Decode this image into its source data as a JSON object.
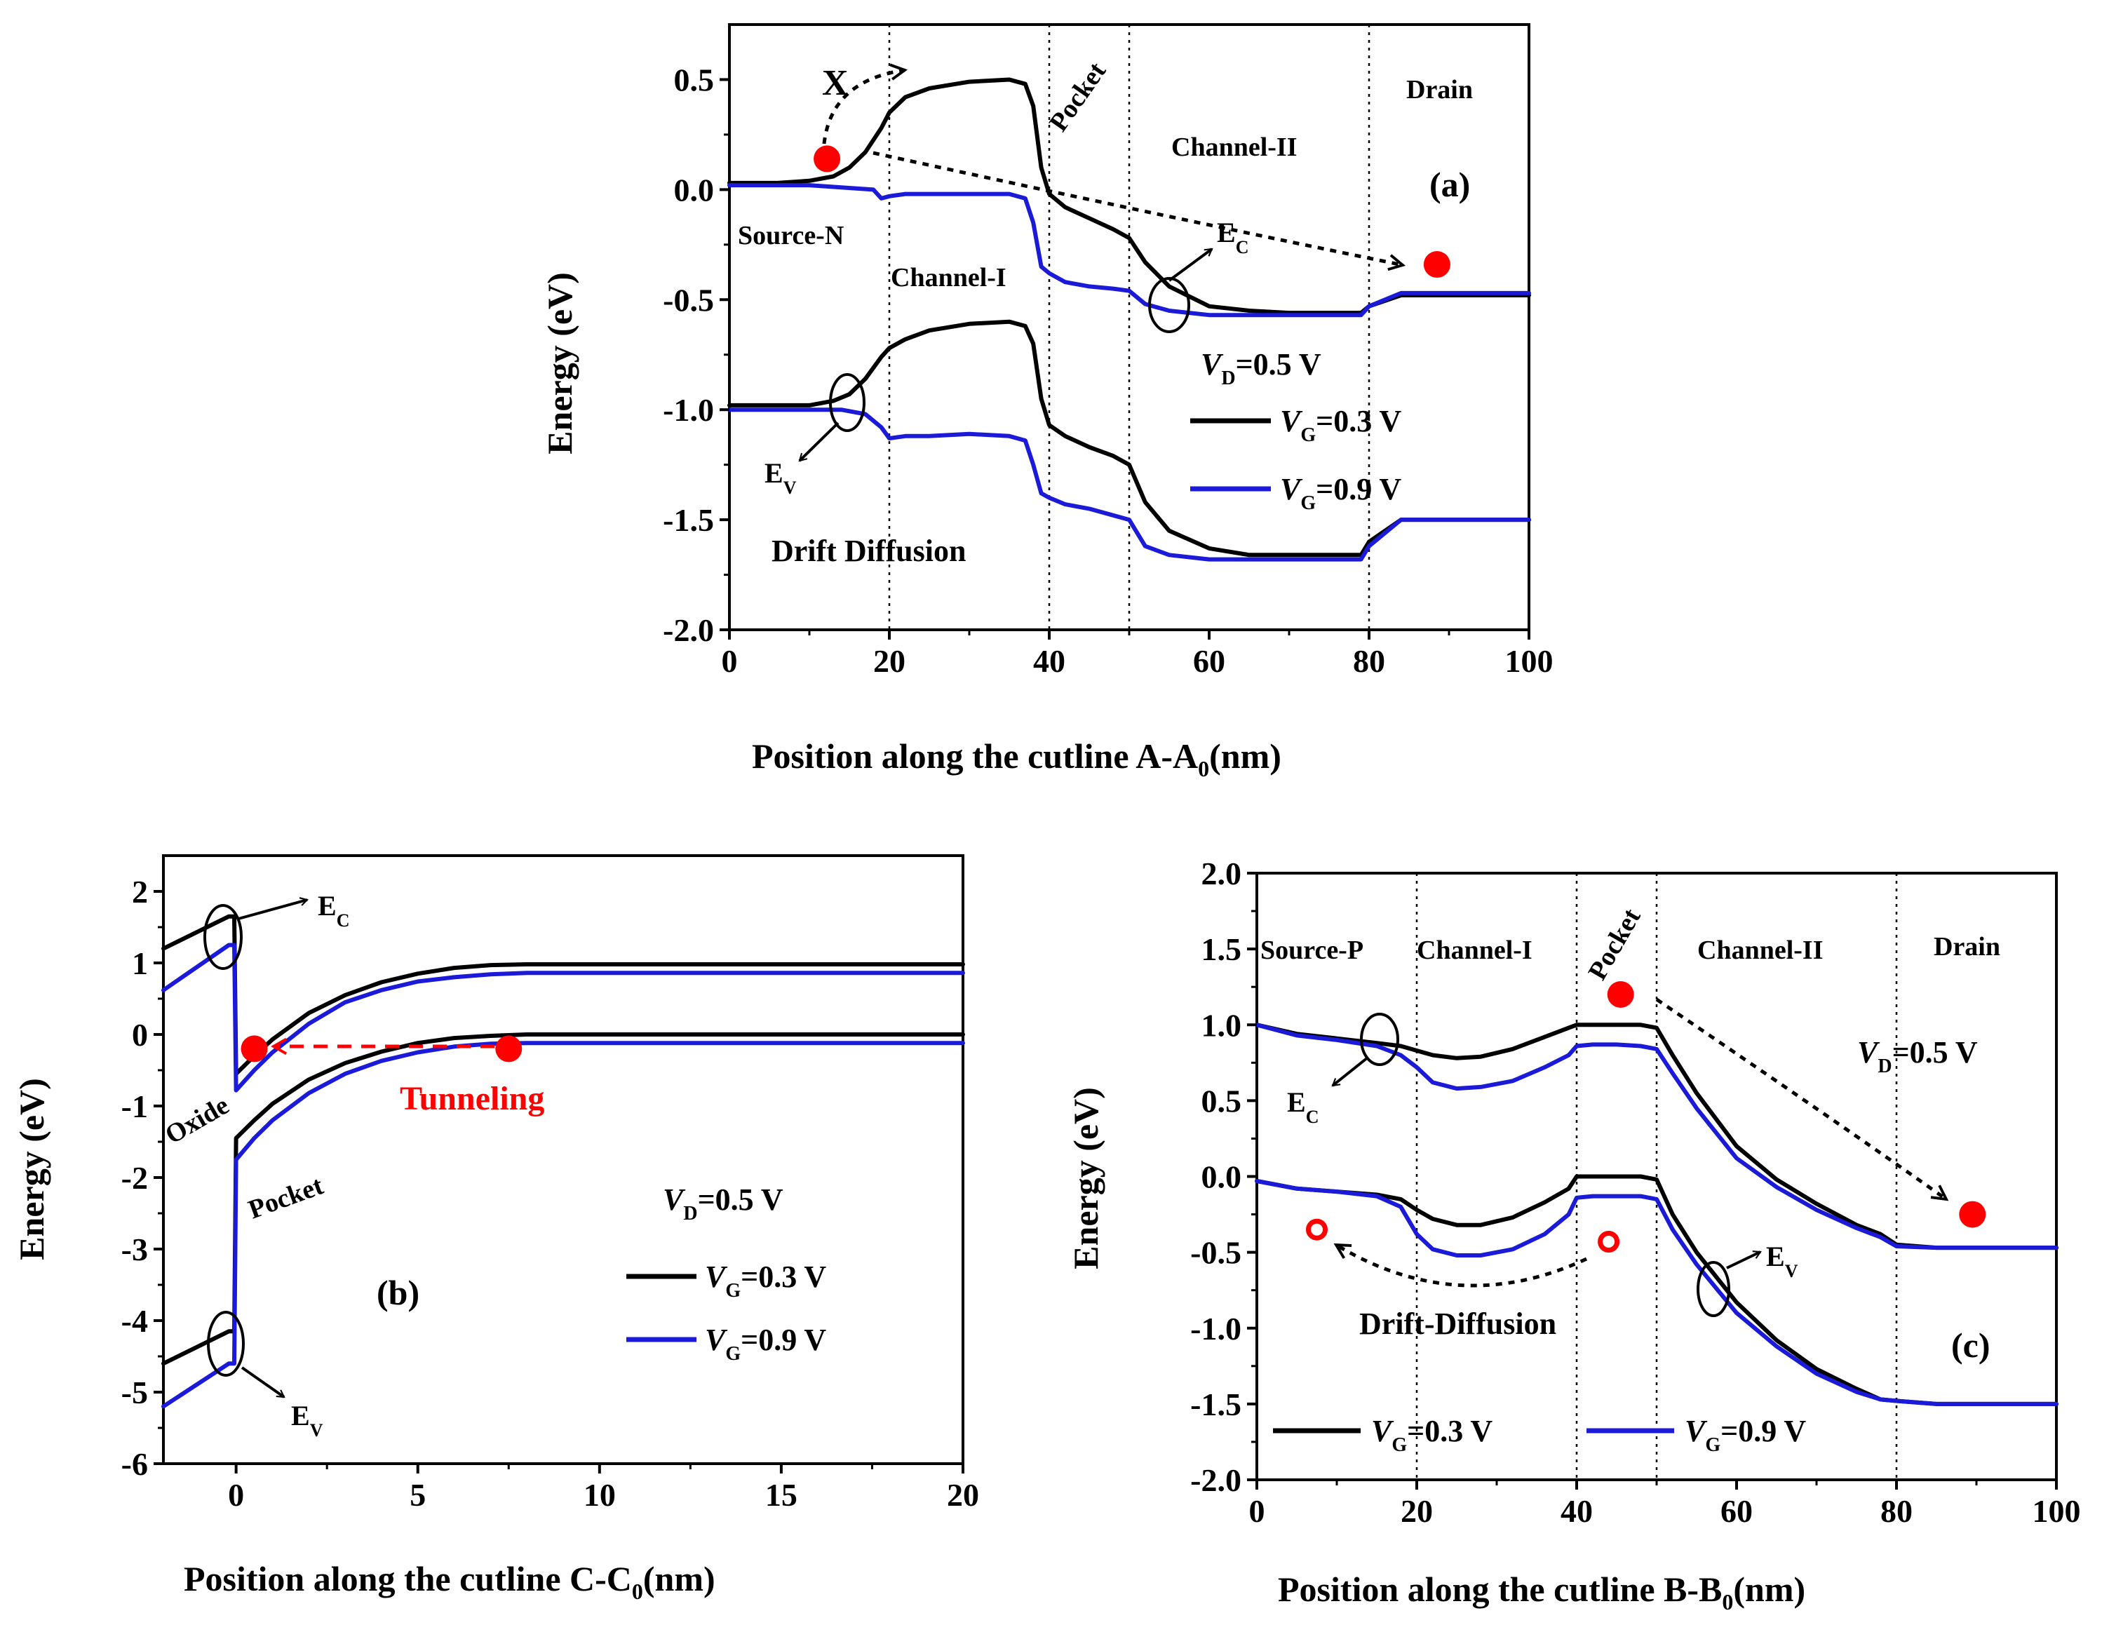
{
  "colors": {
    "vg03": "#000000",
    "vg09": "#1a1ad8",
    "marker": "#ff0000",
    "frame": "#000000"
  },
  "chart_data": [
    {
      "id": "a",
      "type": "line",
      "panel_label": "(a)",
      "ylabel": "Energy (eV)",
      "xlabel": {
        "main": "Position along the cutline A-A",
        "sub": "0",
        "tail": "(nm)"
      },
      "xlim": [
        0,
        100
      ],
      "ylim": [
        -2.0,
        0.75
      ],
      "xticks": [
        0,
        20,
        40,
        60,
        80,
        100
      ],
      "xtick_labels": [
        "0",
        "20",
        "40",
        "60",
        "80",
        "100"
      ],
      "yticks": [
        0.5,
        0.0,
        -0.5,
        -1.0,
        -1.5,
        -2.0
      ],
      "ytick_labels": [
        "0.5",
        "0.0",
        "-0.5",
        "-1.0",
        "-1.5",
        "-2.0"
      ],
      "region_lines_x": [
        20,
        40,
        50,
        80
      ],
      "regions": [
        "Source-N",
        "Channel-I",
        "Pocket",
        "Channel-II",
        "Drain"
      ],
      "annotations": {
        "ec": "E",
        "ec_sub": "C",
        "ev": "E",
        "ev_sub": "V",
        "mode": "Drift Diffusion",
        "blocked": "X"
      },
      "vd_label": {
        "v": "V",
        "sub": "D",
        "val": "=0.5 V"
      },
      "series": [
        {
          "name": "VG=0.3 V",
          "legend_v": "V",
          "legend_sub": "G",
          "legend_val": "=0.3 V",
          "color_key": "vg03",
          "curves": [
            {
              "band": "Ec",
              "x": [
                0,
                6,
                10,
                13,
                15,
                17,
                19,
                20,
                22,
                25,
                30,
                35,
                37,
                38,
                39,
                40,
                42,
                45,
                48,
                50,
                52,
                55,
                60,
                65,
                70,
                75,
                79,
                80,
                84,
                90,
                100
              ],
              "y": [
                0.03,
                0.03,
                0.04,
                0.06,
                0.1,
                0.17,
                0.28,
                0.35,
                0.42,
                0.46,
                0.49,
                0.5,
                0.48,
                0.38,
                0.1,
                -0.02,
                -0.08,
                -0.13,
                -0.18,
                -0.22,
                -0.33,
                -0.44,
                -0.53,
                -0.55,
                -0.56,
                -0.56,
                -0.56,
                -0.53,
                -0.48,
                -0.48,
                -0.48
              ]
            },
            {
              "band": "Ev",
              "x": [
                0,
                6,
                10,
                13,
                15,
                17,
                19,
                20,
                22,
                25,
                30,
                35,
                37,
                38,
                39,
                40,
                42,
                45,
                48,
                50,
                52,
                55,
                60,
                65,
                70,
                75,
                79,
                80,
                84,
                90,
                100
              ],
              "y": [
                -0.98,
                -0.98,
                -0.98,
                -0.96,
                -0.93,
                -0.86,
                -0.76,
                -0.72,
                -0.68,
                -0.64,
                -0.61,
                -0.6,
                -0.62,
                -0.7,
                -0.95,
                -1.07,
                -1.12,
                -1.17,
                -1.21,
                -1.25,
                -1.42,
                -1.55,
                -1.63,
                -1.66,
                -1.66,
                -1.66,
                -1.66,
                -1.6,
                -1.5,
                -1.5,
                -1.5
              ]
            }
          ]
        },
        {
          "name": "VG=0.9 V",
          "legend_v": "V",
          "legend_sub": "G",
          "legend_val": "=0.9 V",
          "color_key": "vg09",
          "curves": [
            {
              "band": "Ec",
              "x": [
                0,
                10,
                18,
                19,
                20,
                22,
                25,
                30,
                35,
                37,
                38,
                39,
                40,
                42,
                45,
                48,
                50,
                52,
                55,
                60,
                70,
                79,
                80,
                84,
                90,
                100
              ],
              "y": [
                0.02,
                0.02,
                0.0,
                -0.04,
                -0.03,
                -0.02,
                -0.02,
                -0.02,
                -0.02,
                -0.04,
                -0.15,
                -0.35,
                -0.38,
                -0.42,
                -0.44,
                -0.45,
                -0.46,
                -0.52,
                -0.55,
                -0.57,
                -0.57,
                -0.57,
                -0.53,
                -0.47,
                -0.47,
                -0.47
              ]
            },
            {
              "band": "Ev",
              "x": [
                0,
                10,
                14,
                17,
                19,
                20,
                22,
                25,
                30,
                35,
                37,
                38,
                39,
                40,
                42,
                45,
                48,
                50,
                52,
                55,
                60,
                70,
                79,
                80,
                84,
                90,
                100
              ],
              "y": [
                -1.0,
                -1.0,
                -1.0,
                -1.02,
                -1.08,
                -1.13,
                -1.12,
                -1.12,
                -1.11,
                -1.12,
                -1.14,
                -1.25,
                -1.38,
                -1.4,
                -1.43,
                -1.45,
                -1.48,
                -1.5,
                -1.62,
                -1.66,
                -1.68,
                -1.68,
                -1.68,
                -1.62,
                -1.5,
                -1.5,
                -1.5
              ]
            }
          ]
        }
      ],
      "markers": [
        {
          "x": 12.2,
          "y": 0.14,
          "filled": true
        },
        {
          "x": 88.5,
          "y": -0.34,
          "filled": true
        }
      ]
    },
    {
      "id": "b",
      "type": "line",
      "panel_label": "(b)",
      "ylabel": "Energy (eV)",
      "xlabel": {
        "main": "Position along the cutline C-C",
        "sub": "0",
        "tail": "(nm)"
      },
      "xlim": [
        -2,
        20
      ],
      "ylim": [
        -6,
        2.5
      ],
      "xticks": [
        0,
        5,
        10,
        15,
        20
      ],
      "xtick_labels": [
        "0",
        "5",
        "10",
        "15",
        "20"
      ],
      "yticks": [
        2,
        1,
        0,
        -1,
        -2,
        -3,
        -4,
        -5,
        -6
      ],
      "ytick_labels": [
        "2",
        "1",
        "0",
        "-1",
        "-2",
        "-3",
        "-4",
        "-5",
        "-6"
      ],
      "annotations": {
        "ec": "E",
        "ec_sub": "C",
        "ev": "E",
        "ev_sub": "V",
        "oxide": "Oxide",
        "pocket": "Pocket",
        "tunneling": "Tunneling"
      },
      "vd_label": {
        "v": "V",
        "sub": "D",
        "val": "=0.5 V"
      },
      "series": [
        {
          "name": "VG=0.3 V",
          "legend_v": "V",
          "legend_sub": "G",
          "legend_val": "=0.3 V",
          "color_key": "vg03",
          "curves": [
            {
              "band": "Ec",
              "x": [
                -2,
                -0.2,
                -0.05,
                0,
                0.5,
                1,
                2,
                3,
                4,
                5,
                6,
                7,
                8,
                10,
                15,
                20
              ],
              "y": [
                1.2,
                1.65,
                1.65,
                -0.55,
                -0.3,
                -0.07,
                0.3,
                0.55,
                0.73,
                0.85,
                0.93,
                0.97,
                0.98,
                0.98,
                0.98,
                0.98
              ]
            },
            {
              "band": "Ev",
              "x": [
                -2,
                -0.2,
                -0.05,
                0,
                0.5,
                1,
                2,
                3,
                4,
                5,
                6,
                7,
                8,
                10,
                15,
                20
              ],
              "y": [
                -4.6,
                -4.15,
                -4.15,
                -1.45,
                -1.2,
                -0.97,
                -0.63,
                -0.4,
                -0.24,
                -0.12,
                -0.05,
                -0.02,
                0.0,
                0.0,
                0.0,
                0.0
              ]
            }
          ]
        },
        {
          "name": "VG=0.9 V",
          "legend_v": "V",
          "legend_sub": "G",
          "legend_val": "=0.9 V",
          "color_key": "vg09",
          "curves": [
            {
              "band": "Ec",
              "x": [
                -2,
                -0.2,
                -0.05,
                0,
                0.5,
                1,
                2,
                3,
                4,
                5,
                6,
                7,
                8,
                10,
                15,
                20
              ],
              "y": [
                0.62,
                1.25,
                1.25,
                -0.78,
                -0.5,
                -0.25,
                0.15,
                0.45,
                0.62,
                0.74,
                0.8,
                0.84,
                0.86,
                0.86,
                0.86,
                0.86
              ]
            },
            {
              "band": "Ev",
              "x": [
                -2,
                -0.2,
                -0.05,
                0,
                0.5,
                1,
                2,
                3,
                4,
                5,
                6,
                7,
                8,
                10,
                15,
                20
              ],
              "y": [
                -5.2,
                -4.6,
                -4.6,
                -1.75,
                -1.45,
                -1.2,
                -0.82,
                -0.55,
                -0.37,
                -0.25,
                -0.17,
                -0.13,
                -0.12,
                -0.12,
                -0.12,
                -0.12
              ]
            }
          ]
        }
      ],
      "markers": [
        {
          "x": 0.5,
          "y": -0.2,
          "filled": true
        },
        {
          "x": 7.5,
          "y": -0.2,
          "filled": true
        }
      ]
    },
    {
      "id": "c",
      "type": "line",
      "panel_label": "(c)",
      "ylabel": "Energy (eV)",
      "xlabel": {
        "main": "Position along the cutline B-B",
        "sub": "0",
        "tail": "(nm)"
      },
      "xlim": [
        0,
        100
      ],
      "ylim": [
        -2.0,
        2.0
      ],
      "xticks": [
        0,
        20,
        40,
        60,
        80,
        100
      ],
      "xtick_labels": [
        "0",
        "20",
        "40",
        "60",
        "80",
        "100"
      ],
      "yticks": [
        2.0,
        1.5,
        1.0,
        0.5,
        0.0,
        -0.5,
        -1.0,
        -1.5,
        -2.0
      ],
      "ytick_labels": [
        "2.0",
        "1.5",
        "1.0",
        "0.5",
        "0.0",
        "-0.5",
        "-1.0",
        "-1.5",
        "-2.0"
      ],
      "region_lines_x": [
        20,
        40,
        50,
        80
      ],
      "regions": [
        "Source-P",
        "Channel-I",
        "Pocket",
        "Channel-II",
        "Drain"
      ],
      "annotations": {
        "ec": "E",
        "ec_sub": "C",
        "ev": "E",
        "ev_sub": "V",
        "mode": "Drift-Diffusion"
      },
      "vd_label": {
        "v": "V",
        "sub": "D",
        "val": "=0.5 V"
      },
      "series": [
        {
          "name": "VG=0.3 V",
          "legend_v": "V",
          "legend_sub": "G",
          "legend_val": "=0.3 V",
          "color_key": "vg03",
          "curves": [
            {
              "band": "Ec",
              "x": [
                0,
                5,
                10,
                15,
                18,
                20,
                22,
                25,
                28,
                32,
                36,
                39,
                40,
                42,
                45,
                48,
                50,
                52,
                55,
                60,
                65,
                70,
                75,
                78,
                80,
                85,
                90,
                100
              ],
              "y": [
                1.0,
                0.94,
                0.91,
                0.88,
                0.86,
                0.83,
                0.8,
                0.78,
                0.79,
                0.84,
                0.92,
                0.98,
                1.0,
                1.0,
                1.0,
                1.0,
                0.98,
                0.8,
                0.55,
                0.2,
                -0.02,
                -0.18,
                -0.32,
                -0.38,
                -0.45,
                -0.47,
                -0.47,
                -0.47
              ]
            },
            {
              "band": "Ev",
              "x": [
                0,
                5,
                10,
                15,
                18,
                20,
                22,
                25,
                28,
                32,
                36,
                39,
                40,
                42,
                45,
                48,
                50,
                52,
                55,
                60,
                65,
                70,
                75,
                78,
                80,
                85,
                90,
                100
              ],
              "y": [
                -0.03,
                -0.08,
                -0.1,
                -0.12,
                -0.15,
                -0.22,
                -0.28,
                -0.32,
                -0.32,
                -0.27,
                -0.17,
                -0.08,
                0.0,
                0.0,
                0.0,
                0.0,
                -0.02,
                -0.25,
                -0.5,
                -0.83,
                -1.08,
                -1.27,
                -1.4,
                -1.47,
                -1.48,
                -1.5,
                -1.5,
                -1.5
              ]
            }
          ]
        },
        {
          "name": "VG=0.9 V",
          "legend_v": "V",
          "legend_sub": "G",
          "legend_val": "=0.9 V",
          "color_key": "vg09",
          "curves": [
            {
              "band": "Ec",
              "x": [
                0,
                5,
                10,
                15,
                18,
                20,
                22,
                25,
                28,
                32,
                36,
                39,
                40,
                42,
                45,
                48,
                50,
                52,
                55,
                60,
                65,
                70,
                75,
                78,
                80,
                85,
                90,
                100
              ],
              "y": [
                1.0,
                0.93,
                0.9,
                0.86,
                0.8,
                0.72,
                0.62,
                0.58,
                0.59,
                0.63,
                0.72,
                0.8,
                0.86,
                0.87,
                0.87,
                0.86,
                0.84,
                0.68,
                0.45,
                0.12,
                -0.07,
                -0.22,
                -0.34,
                -0.4,
                -0.46,
                -0.47,
                -0.47,
                -0.47
              ]
            },
            {
              "band": "Ev",
              "x": [
                0,
                5,
                10,
                15,
                18,
                20,
                22,
                25,
                28,
                32,
                36,
                39,
                40,
                42,
                45,
                48,
                50,
                52,
                55,
                60,
                65,
                70,
                75,
                78,
                80,
                85,
                90,
                100
              ],
              "y": [
                -0.03,
                -0.08,
                -0.1,
                -0.13,
                -0.2,
                -0.38,
                -0.48,
                -0.52,
                -0.52,
                -0.48,
                -0.38,
                -0.25,
                -0.14,
                -0.13,
                -0.13,
                -0.13,
                -0.15,
                -0.35,
                -0.58,
                -0.9,
                -1.12,
                -1.3,
                -1.42,
                -1.47,
                -1.48,
                -1.5,
                -1.5,
                -1.5
              ]
            }
          ]
        }
      ],
      "markers": [
        {
          "x": 45.5,
          "y": 1.2,
          "filled": true
        },
        {
          "x": 89.5,
          "y": -0.25,
          "filled": true
        },
        {
          "x": 7.5,
          "y": -0.35,
          "filled": false
        },
        {
          "x": 44.0,
          "y": -0.43,
          "filled": false
        }
      ]
    }
  ]
}
